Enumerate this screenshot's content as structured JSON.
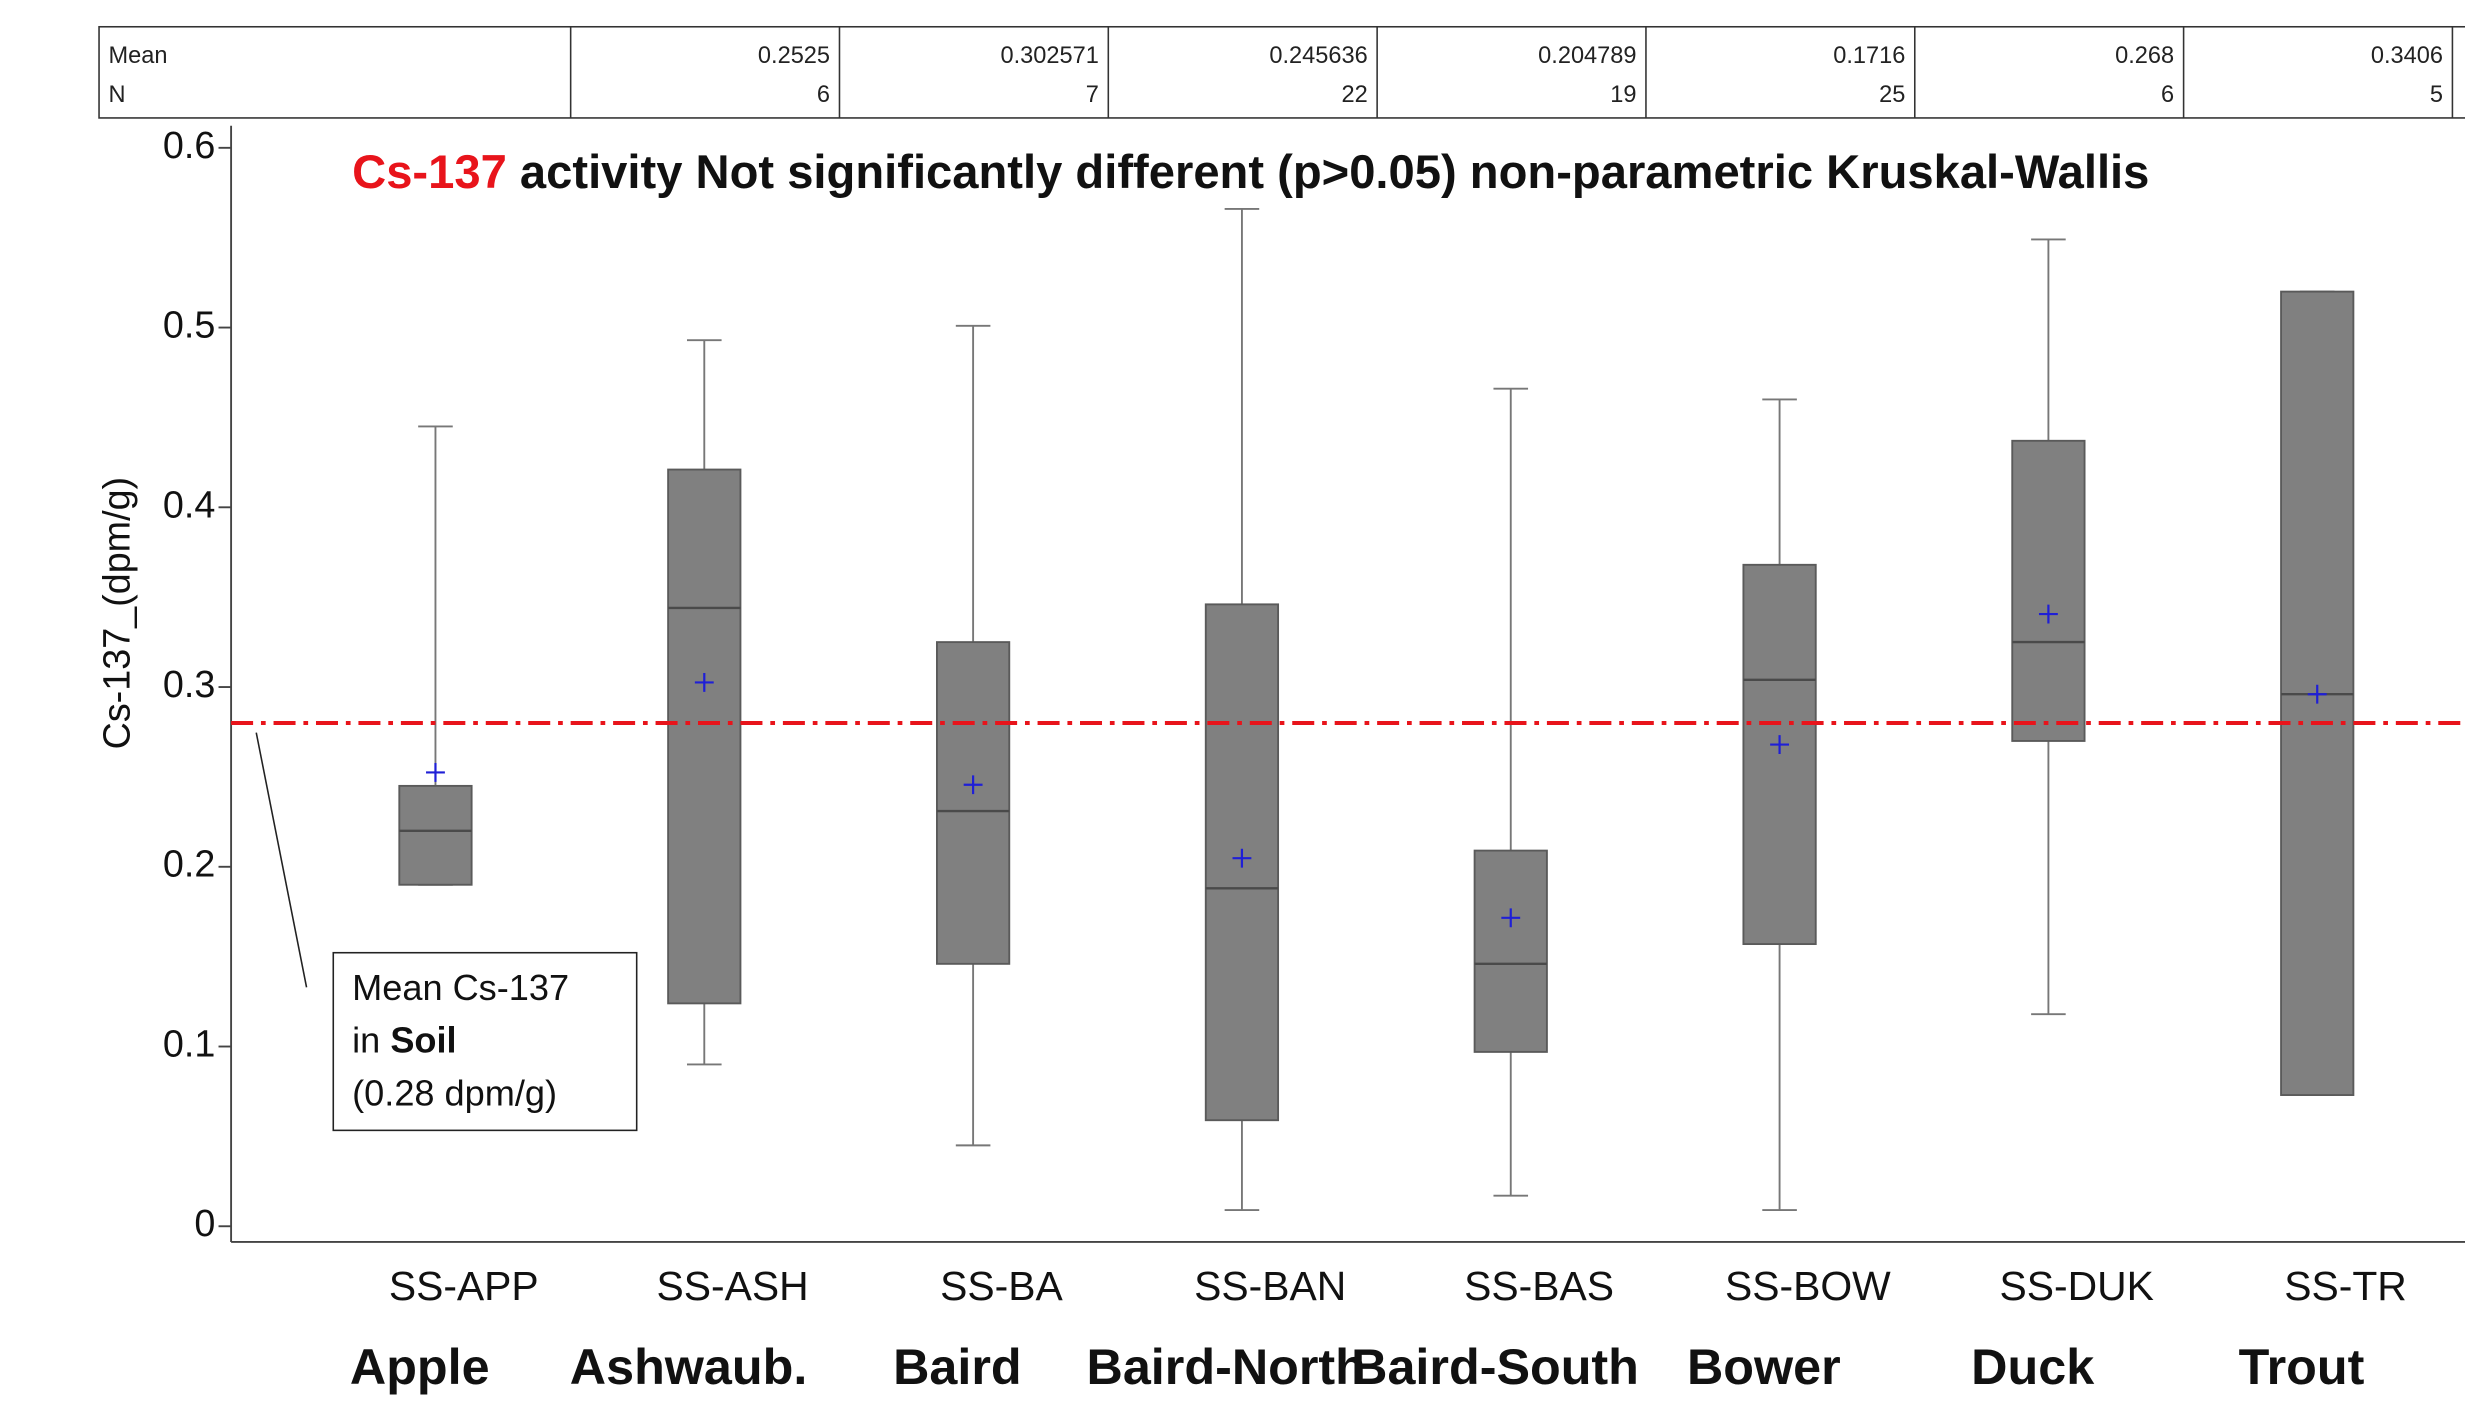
{
  "chart_data": {
    "type": "box",
    "title_highlight": "Cs-137",
    "title": "activity Not significantly different (p>0.05)  non-parametric Kruskal-Wallis",
    "y_label": "Cs-137_(dpm/g)",
    "table_row_labels": [
      "Mean",
      "N"
    ],
    "categories": [
      "SS-APP",
      "SS-ASH",
      "SS-BA",
      "SS-BAN",
      "SS-BAS",
      "SS-BOW",
      "SS-DUK",
      "SS-TR"
    ],
    "groups": [
      "Apple",
      "Ashwaub.",
      "Baird",
      "Baird-North",
      "Baird-South",
      "Bower",
      "Duck",
      "Trout"
    ],
    "boxes": [
      {
        "min": 0.19,
        "q1": 0.19,
        "median": 0.22,
        "q3": 0.245,
        "max": 0.445,
        "mean": 0.2525,
        "n": 6
      },
      {
        "min": 0.09,
        "q1": 0.124,
        "median": 0.344,
        "q3": 0.421,
        "max": 0.493,
        "mean": 0.302571,
        "n": 7
      },
      {
        "min": 0.045,
        "q1": 0.146,
        "median": 0.231,
        "q3": 0.325,
        "max": 0.501,
        "mean": 0.245636,
        "n": 22
      },
      {
        "min": 0.009,
        "q1": 0.059,
        "median": 0.188,
        "q3": 0.346,
        "max": 0.566,
        "mean": 0.204789,
        "n": 19
      },
      {
        "min": 0.017,
        "q1": 0.097,
        "median": 0.146,
        "q3": 0.209,
        "max": 0.466,
        "mean": 0.1716,
        "n": 25
      },
      {
        "min": 0.009,
        "q1": 0.157,
        "median": 0.304,
        "q3": 0.368,
        "max": 0.46,
        "mean": 0.268,
        "n": 6
      },
      {
        "min": 0.118,
        "q1": 0.27,
        "median": 0.325,
        "q3": 0.437,
        "max": 0.549,
        "mean": 0.3406,
        "n": 5
      },
      {
        "min": 0.073,
        "q1": 0.073,
        "median": 0.296,
        "q3": 0.52,
        "max": 0.52,
        "mean": 0.296
      }
    ],
    "box_color": "#808080",
    "mean_color": "#1f1fd6",
    "reference_line": {
      "value": 0.28,
      "color": "#e8141b"
    },
    "annotation": {
      "line1": "Mean  Cs-137",
      "line2_prefix": "in",
      "line2_bold": "Soil",
      "line3": "(0.28 dpm/g)"
    },
    "ylim": [
      0,
      0.6
    ],
    "yticks": [
      0,
      0.1,
      0.2,
      0.3,
      0.4,
      0.5,
      0.6
    ]
  }
}
